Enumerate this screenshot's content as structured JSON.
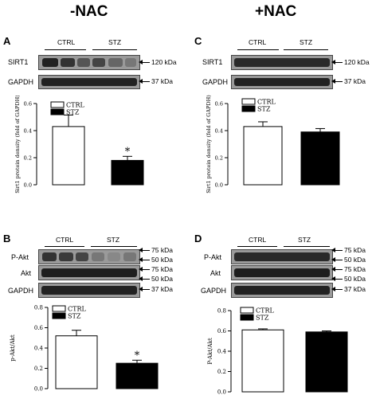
{
  "columns": {
    "left": "-NAC",
    "right": "+NAC"
  },
  "blots": {
    "A": {
      "letter": "A",
      "groups": [
        "CTRL",
        "STZ"
      ],
      "rows": [
        {
          "label": "SIRT1",
          "kda": [
            "120 kDa"
          ]
        },
        {
          "label": "GAPDH",
          "kda": [
            "37 kDa"
          ]
        }
      ]
    },
    "B": {
      "letter": "B",
      "groups": [
        "CTRL",
        "STZ"
      ],
      "rows": [
        {
          "label": "P-Akt",
          "kda": [
            "75 kDa",
            "50 kDa"
          ]
        },
        {
          "label": "Akt",
          "kda": [
            "75 kDa",
            "50 kDa"
          ]
        },
        {
          "label": "GAPDH",
          "kda": [
            "37 kDa"
          ]
        }
      ]
    },
    "C": {
      "letter": "C",
      "groups": [
        "CTRL",
        "STZ"
      ],
      "rows": [
        {
          "label": "SIRT1",
          "kda": [
            "120 kDa"
          ]
        },
        {
          "label": "GAPDH",
          "kda": [
            "37 kDa"
          ]
        }
      ]
    },
    "D": {
      "letter": "D",
      "groups": [
        "CTRL",
        "STZ"
      ],
      "rows": [
        {
          "label": "P-Akt",
          "kda": [
            "75 kDa",
            "50 kDa"
          ]
        },
        {
          "label": "Akt",
          "kda": [
            "75 kDa",
            "50 kDa"
          ]
        },
        {
          "label": "GAPDH",
          "kda": [
            "37 kDa"
          ]
        }
      ]
    }
  },
  "chart_data": [
    {
      "panel": "A",
      "type": "bar",
      "categories": [
        "CTRL",
        "STZ"
      ],
      "values": [
        0.43,
        0.18
      ],
      "errors": [
        0.085,
        0.03
      ],
      "ylabel": "Sirt1 protein density (fold of GAPDH)",
      "ylim": [
        0,
        0.6
      ],
      "yticks": [
        "0.0",
        "0.2",
        "0.4",
        "0.6"
      ],
      "significance": [
        null,
        "*"
      ],
      "legend": [
        "CTRL",
        "STZ"
      ],
      "colors": [
        "#ffffff",
        "#000000"
      ]
    },
    {
      "panel": "C",
      "type": "bar",
      "categories": [
        "CTRL",
        "STZ"
      ],
      "values": [
        0.43,
        0.39
      ],
      "errors": [
        0.035,
        0.025
      ],
      "ylabel": "Sirt1 protein density (fold of GAPDH)",
      "ylim": [
        0,
        0.6
      ],
      "yticks": [
        "0.0",
        "0.2",
        "0.4",
        "0.6"
      ],
      "significance": [
        null,
        null
      ],
      "legend": [
        "CTRL",
        "STZ"
      ],
      "colors": [
        "#ffffff",
        "#000000"
      ]
    },
    {
      "panel": "B",
      "type": "bar",
      "categories": [
        "CTRL",
        "STZ"
      ],
      "values": [
        0.52,
        0.25
      ],
      "errors": [
        0.055,
        0.03
      ],
      "ylabel": "p-Akt/Akt",
      "ylim": [
        0,
        0.8
      ],
      "yticks": [
        "0.0",
        "0.2",
        "0.4",
        "0.6",
        "0.8"
      ],
      "significance": [
        null,
        "*"
      ],
      "legend": [
        "CTRL",
        "STZ"
      ],
      "colors": [
        "#ffffff",
        "#000000"
      ]
    },
    {
      "panel": "D",
      "type": "bar",
      "categories": [
        "CTRL",
        "STZ"
      ],
      "values": [
        0.61,
        0.59
      ],
      "errors": [
        0.01,
        0.01
      ],
      "ylabel": "P-Akt/Akt",
      "ylim": [
        0,
        0.8
      ],
      "yticks": [
        "0.0",
        "0.2",
        "0.4",
        "0.6",
        "0.8"
      ],
      "significance": [
        null,
        null
      ],
      "legend": [
        "CTRL",
        "STZ"
      ],
      "colors": [
        "#ffffff",
        "#000000"
      ]
    }
  ]
}
